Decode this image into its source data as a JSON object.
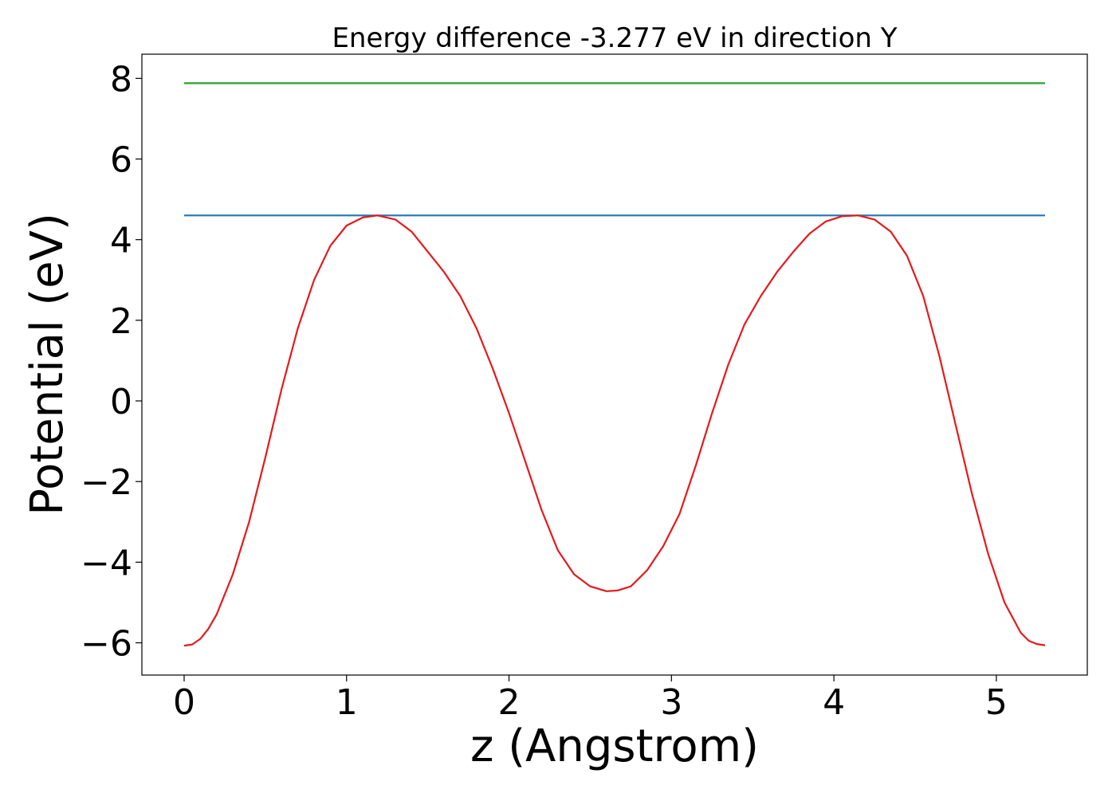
{
  "chart_data": {
    "type": "line",
    "title": "Energy difference -3.277 eV in direction Y",
    "xlabel": "z (Angstrom)",
    "ylabel": "Potential (eV)",
    "xlim": [
      -0.26,
      5.56
    ],
    "ylim": [
      -6.8,
      8.6
    ],
    "xticks": [
      0,
      1,
      2,
      3,
      4,
      5
    ],
    "xtick_labels": [
      "0",
      "1",
      "2",
      "3",
      "4",
      "5"
    ],
    "yticks": [
      -6,
      -4,
      -2,
      0,
      2,
      4,
      6,
      8
    ],
    "ytick_labels": [
      "−6",
      "−4",
      "−2",
      "0",
      "2",
      "4",
      "6",
      "8"
    ],
    "grid": false,
    "series": [
      {
        "color": "#2ca02c",
        "x": [
          0,
          5.3
        ],
        "y": [
          7.88,
          7.88
        ]
      },
      {
        "color": "#1f77b4",
        "x": [
          0,
          5.3
        ],
        "y": [
          4.6,
          4.6
        ]
      },
      {
        "color": "#e41a1c",
        "x": [
          0,
          0.05,
          0.1,
          0.15,
          0.2,
          0.3,
          0.4,
          0.5,
          0.6,
          0.7,
          0.8,
          0.9,
          1.0,
          1.1,
          1.19,
          1.3,
          1.4,
          1.5,
          1.6,
          1.7,
          1.8,
          1.9,
          2.0,
          2.1,
          2.2,
          2.3,
          2.4,
          2.5,
          2.6,
          2.67,
          2.75,
          2.85,
          2.95,
          3.05,
          3.15,
          3.25,
          3.35,
          3.45,
          3.55,
          3.65,
          3.75,
          3.85,
          3.95,
          4.05,
          4.15,
          4.25,
          4.35,
          4.45,
          4.55,
          4.65,
          4.75,
          4.85,
          4.95,
          5.05,
          5.15,
          5.2,
          5.25,
          5.3
        ],
        "y": [
          -6.07,
          -6.04,
          -5.9,
          -5.65,
          -5.3,
          -4.3,
          -3.0,
          -1.4,
          0.3,
          1.8,
          3.0,
          3.85,
          4.35,
          4.55,
          4.6,
          4.5,
          4.2,
          3.7,
          3.2,
          2.6,
          1.8,
          0.8,
          -0.3,
          -1.5,
          -2.7,
          -3.7,
          -4.3,
          -4.6,
          -4.72,
          -4.7,
          -4.6,
          -4.2,
          -3.6,
          -2.8,
          -1.6,
          -0.3,
          0.9,
          1.9,
          2.6,
          3.2,
          3.7,
          4.15,
          4.45,
          4.58,
          4.6,
          4.5,
          4.2,
          3.6,
          2.6,
          1.1,
          -0.6,
          -2.3,
          -3.8,
          -5.0,
          -5.75,
          -5.95,
          -6.03,
          -6.06
        ]
      }
    ]
  }
}
